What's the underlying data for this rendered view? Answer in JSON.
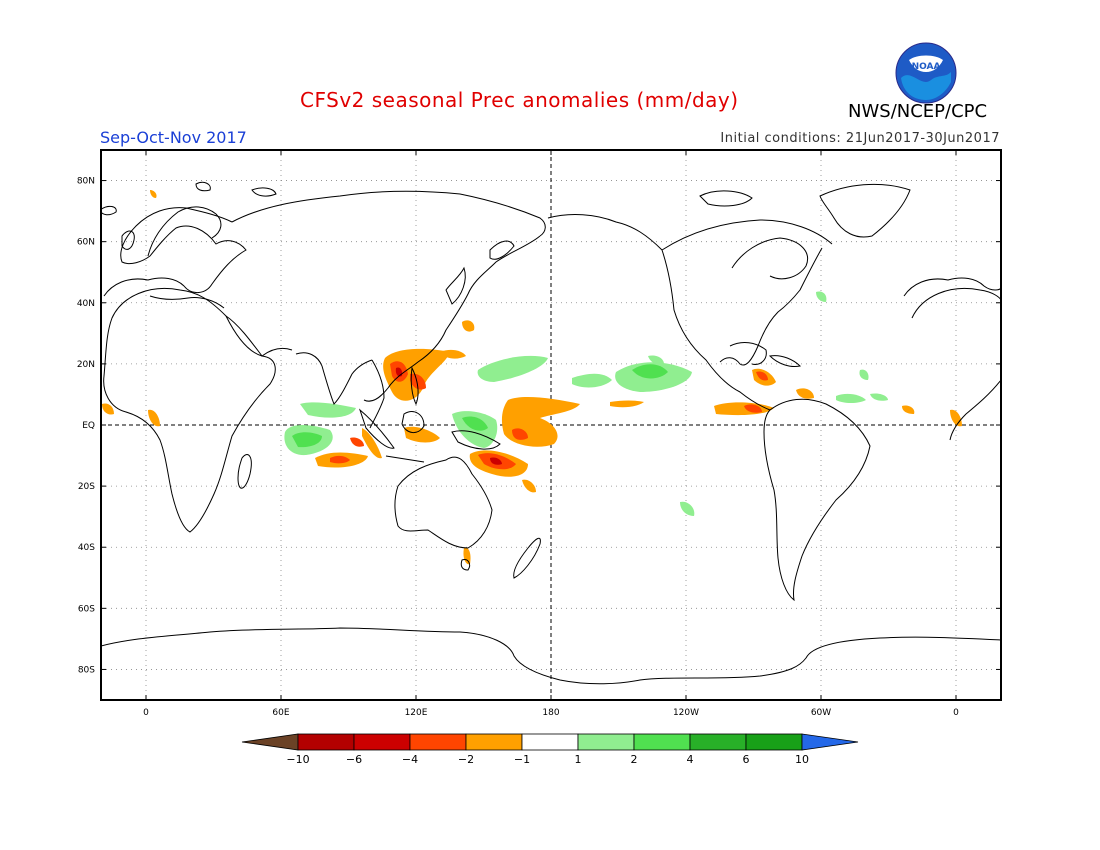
{
  "header": {
    "title": "CFSv2 seasonal Prec anomalies (mm/day)",
    "season": "Sep-Oct-Nov 2017",
    "initial_conditions": "Initial conditions: 21Jun2017-30Jun2017",
    "organization": "NWS/NCEP/CPC",
    "logo_text": "NOAA"
  },
  "map": {
    "projection": "cylindrical equidistant",
    "lon_range": [
      -20,
      380
    ],
    "lat_range": [
      -90,
      90
    ],
    "lat_labels": [
      "80N",
      "60N",
      "40N",
      "20N",
      "EQ",
      "20S",
      "40S",
      "60S",
      "80S"
    ],
    "lon_labels": [
      "0",
      "60E",
      "120E",
      "180",
      "120W",
      "60W",
      "0"
    ],
    "grid": true,
    "dashed_reference_lines": [
      "equator",
      "dateline"
    ]
  },
  "colorbar": {
    "tick_labels": [
      "-10",
      "-6",
      "-4",
      "-2",
      "-1",
      "1",
      "2",
      "4",
      "6",
      "10"
    ],
    "colors": [
      "#6b4226",
      "#b30000",
      "#cc0000",
      "#ff4500",
      "#ffa000",
      "#ffffff",
      "#90ee90",
      "#50e050",
      "#28b028",
      "#18a018",
      "#2468e8"
    ]
  },
  "anomaly_regions": [
    {
      "area": "Western Pacific / Philippines",
      "sign": "dry",
      "colors": [
        "#ffa000",
        "#ff4500",
        "#cc0000"
      ]
    },
    {
      "area": "Central equatorial Pacific",
      "sign": "dry",
      "colors": [
        "#ffa000"
      ]
    },
    {
      "area": "Maritime Continent south / Coral Sea",
      "sign": "dry",
      "colors": [
        "#ffa000",
        "#ff4500",
        "#cc0000"
      ]
    },
    {
      "area": "Eastern Indian Ocean",
      "sign": "dry",
      "colors": [
        "#ffa000",
        "#ff4500"
      ]
    },
    {
      "area": "Western Indian Ocean",
      "sign": "wet",
      "colors": [
        "#90ee90",
        "#50e050"
      ]
    },
    {
      "area": "North Pacific ITCZ",
      "sign": "wet",
      "colors": [
        "#90ee90",
        "#50e050"
      ]
    },
    {
      "area": "Central America / Caribbean",
      "sign": "dry",
      "colors": [
        "#ffa000",
        "#ff4500"
      ]
    },
    {
      "area": "Gulf of Guinea",
      "sign": "dry",
      "colors": [
        "#ffa000"
      ]
    }
  ]
}
